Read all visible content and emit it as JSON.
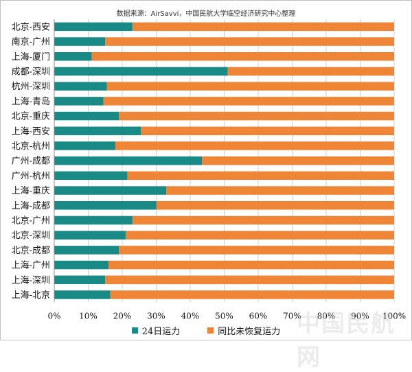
{
  "source_note": "数据来源：AirSavvi，中国民航大学临空经济研究中心整理",
  "watermark_text": "中国民航网",
  "colors": {
    "series1": "#1a8a86",
    "series2": "#ee8537",
    "grid": "#d0d0d0"
  },
  "chart_data": {
    "type": "bar",
    "orientation": "horizontal",
    "stacked": true,
    "categories": [
      "北京-西安",
      "南京-广州",
      "上海-厦门",
      "成都-深圳",
      "杭州-深圳",
      "上海-青岛",
      "北京-重庆",
      "上海-西安",
      "北京-杭州",
      "广州-成都",
      "广州-杭州",
      "上海-重庆",
      "上海-成都",
      "北京-广州",
      "北京-深圳",
      "北京-成都",
      "上海-广州",
      "上海-深圳",
      "上海-北京"
    ],
    "series": [
      {
        "name": "24日运力",
        "values": [
          23,
          15,
          11,
          51,
          15.5,
          14.5,
          19,
          25.5,
          18,
          43.5,
          21.5,
          33,
          30,
          23,
          21,
          19,
          16,
          15,
          16.5
        ]
      },
      {
        "name": "同比未恢复运力",
        "values": [
          77,
          85,
          89,
          49,
          84.5,
          85.5,
          81,
          74.5,
          82,
          56.5,
          78.5,
          67,
          70,
          77,
          79,
          81,
          84,
          85,
          83.5
        ]
      }
    ],
    "xlim": [
      0,
      100
    ],
    "xticks": [
      "0%",
      "10%",
      "20%",
      "30%",
      "40%",
      "50%",
      "60%",
      "70%",
      "80%",
      "90%",
      "100%"
    ],
    "grid": true,
    "legend_position": "bottom"
  }
}
